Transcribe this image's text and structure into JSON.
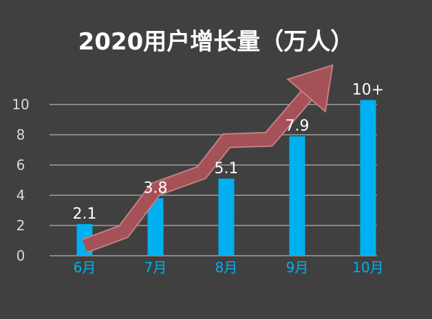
{
  "chart_data": {
    "type": "bar",
    "title": "2020用户增长量（万人）",
    "categories": [
      "6月",
      "7月",
      "8月",
      "9月",
      "10月"
    ],
    "values": [
      2.1,
      3.8,
      5.1,
      7.9,
      10.3
    ],
    "data_labels": [
      "2.1",
      "3.8",
      "5.1",
      "7.9",
      "10+"
    ],
    "y_ticks": [
      "0",
      "2",
      "4",
      "6",
      "8",
      "10"
    ],
    "ylim": [
      0,
      12
    ],
    "grid": true,
    "legend": "none",
    "annotation": "trend-arrow",
    "colors": {
      "background": "#404040",
      "bar": "#00b0f0",
      "category_label": "#00b0f0",
      "title": "#ffffff",
      "data_label": "#ffffff",
      "tick_label": "#d9d9d9",
      "gridline": "#b3b3b3",
      "arrow": "#a45257",
      "arrow_stroke": "#c57f83"
    }
  }
}
